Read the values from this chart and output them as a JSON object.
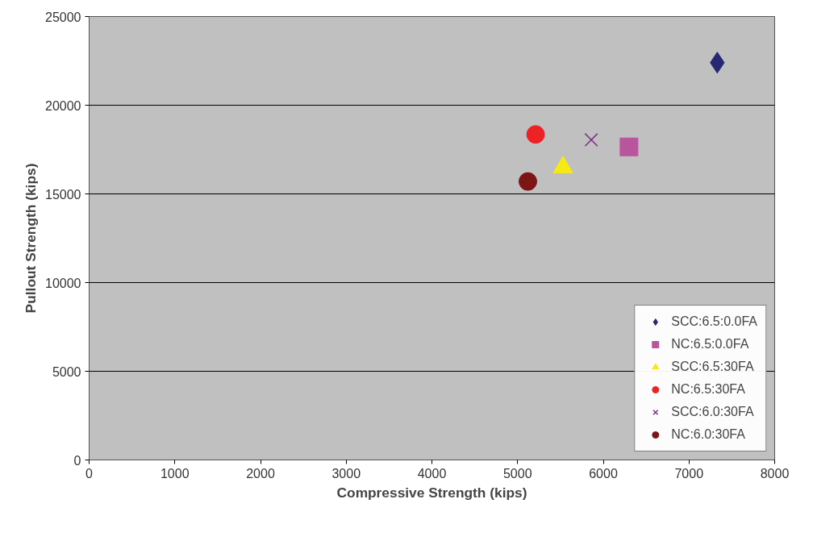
{
  "chart_data": {
    "type": "scatter",
    "xlabel": "Compressive Strength (kips)",
    "ylabel": "Pullout Strength (kips)",
    "xlim": [
      0,
      8000
    ],
    "xticks": [
      0,
      1000,
      2000,
      3000,
      4000,
      5000,
      6000,
      7000,
      8000
    ],
    "ylim": [
      0,
      25000
    ],
    "yticks": [
      0,
      5000,
      10000,
      15000,
      20000,
      25000
    ],
    "grid": "y",
    "legend": "bottom right",
    "series": [
      {
        "name": "SCC:6.5:0.0FA",
        "color": "#262873",
        "marker": "diamond",
        "x": [
          7330
        ],
        "values": [
          22400
        ]
      },
      {
        "name": "NC:6.5:0.0FA",
        "color": "#b8559d",
        "marker": "square",
        "x": [
          6300
        ],
        "values": [
          17650
        ]
      },
      {
        "name": "SCC:6.5:30FA",
        "color": "#f5ea14",
        "marker": "triangle",
        "x": [
          5530
        ],
        "values": [
          16500
        ]
      },
      {
        "name": "NC:6.5:30FA",
        "color": "#ec2227",
        "marker": "circle",
        "x": [
          5210
        ],
        "values": [
          18350
        ]
      },
      {
        "name": "SCC:6.0:30FA",
        "color": "#7d2f86",
        "marker": "cross",
        "x": [
          5860
        ],
        "values": [
          18050
        ]
      },
      {
        "name": "NC:6.0:30FA",
        "color": "#7d1416",
        "marker": "circle",
        "x": [
          5120
        ],
        "values": [
          15700
        ]
      }
    ]
  }
}
